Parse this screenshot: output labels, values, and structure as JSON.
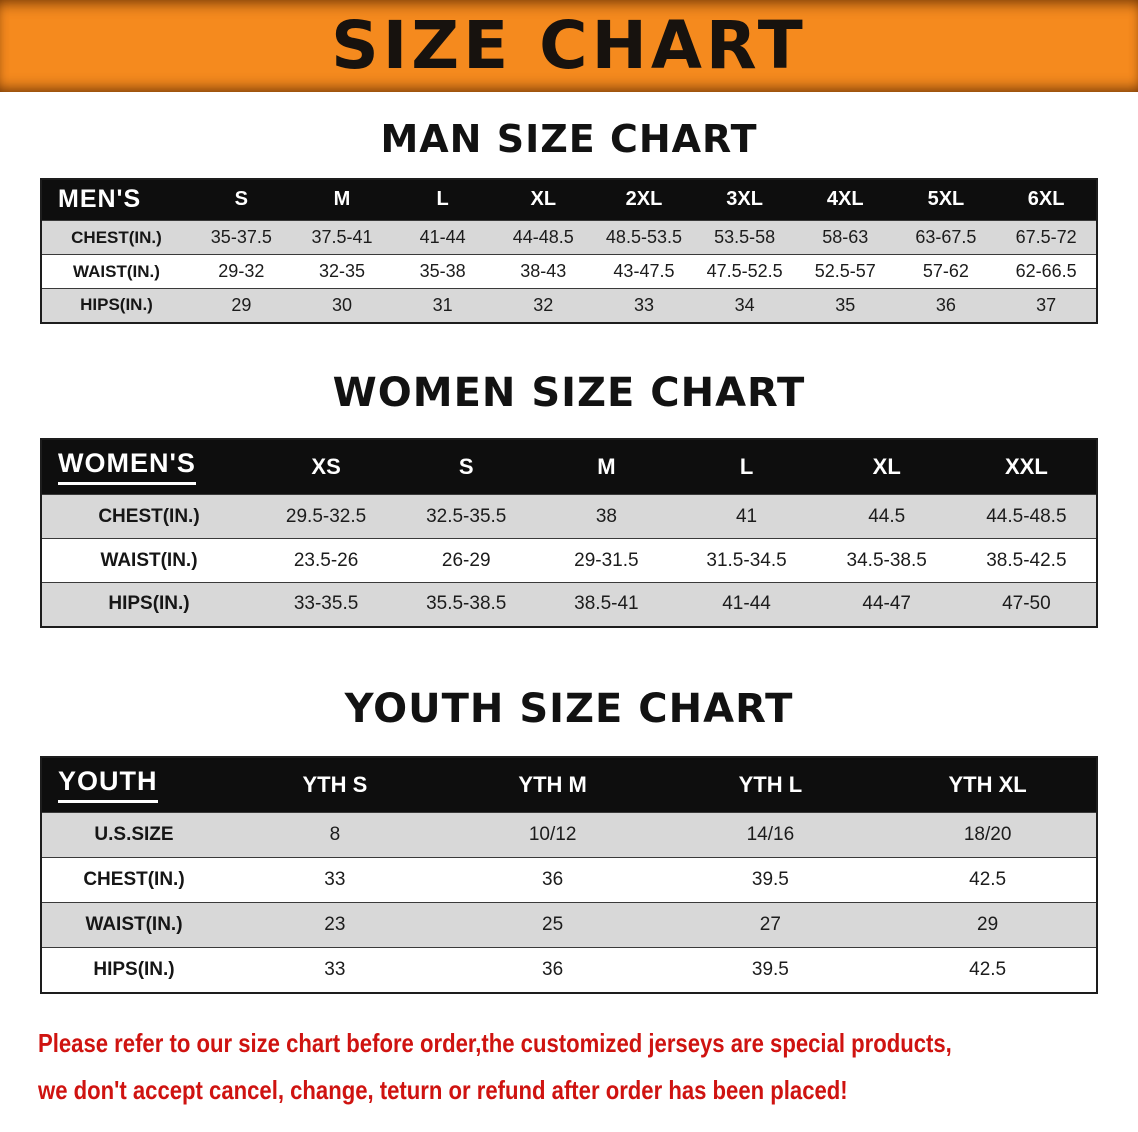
{
  "banner": {
    "title": "SIZE CHART",
    "bg_color": "#f58a1e"
  },
  "sections": [
    {
      "heading": "MAN SIZE CHART",
      "table": {
        "header": [
          "MEN'S",
          "S",
          "M",
          "L",
          "XL",
          "2XL",
          "3XL",
          "4XL",
          "5XL",
          "6XL"
        ],
        "rows": [
          [
            "CHEST(IN.)",
            "35-37.5",
            "37.5-41",
            "41-44",
            "44-48.5",
            "48.5-53.5",
            "53.5-58",
            "58-63",
            "63-67.5",
            "67.5-72"
          ],
          [
            "WAIST(IN.)",
            "29-32",
            "32-35",
            "35-38",
            "38-43",
            "43-47.5",
            "47.5-52.5",
            "52.5-57",
            "57-62",
            "62-66.5"
          ],
          [
            "HIPS(IN.)",
            "29",
            "30",
            "31",
            "32",
            "33",
            "34",
            "35",
            "36",
            "37"
          ]
        ]
      }
    },
    {
      "heading": "WOMEN SIZE CHART",
      "table": {
        "header": [
          "WOMEN'S",
          "XS",
          "S",
          "M",
          "L",
          "XL",
          "XXL"
        ],
        "rows": [
          [
            "CHEST(IN.)",
            "29.5-32.5",
            "32.5-35.5",
            "38",
            "41",
            "44.5",
            "44.5-48.5"
          ],
          [
            "WAIST(IN.)",
            "23.5-26",
            "26-29",
            "29-31.5",
            "31.5-34.5",
            "34.5-38.5",
            "38.5-42.5"
          ],
          [
            "HIPS(IN.)",
            "33-35.5",
            "35.5-38.5",
            "38.5-41",
            "41-44",
            "44-47",
            "47-50"
          ]
        ]
      }
    },
    {
      "heading": "YOUTH SIZE CHART",
      "table": {
        "header": [
          "YOUTH",
          "YTH S",
          "YTH M",
          "YTH L",
          "YTH XL"
        ],
        "rows": [
          [
            "U.S.SIZE",
            "8",
            "10/12",
            "14/16",
            "18/20"
          ],
          [
            "CHEST(IN.)",
            "33",
            "36",
            "39.5",
            "42.5"
          ],
          [
            "WAIST(IN.)",
            "23",
            "25",
            "27",
            "29"
          ],
          [
            "HIPS(IN.)",
            "33",
            "36",
            "39.5",
            "42.5"
          ]
        ]
      }
    }
  ],
  "disclaimer": {
    "lines": [
      "Please refer to our size chart before order,the customized jerseys are special products,",
      "we don't accept cancel, change, teturn or refund after order has been placed!"
    ],
    "text_color": "#cf1310"
  }
}
